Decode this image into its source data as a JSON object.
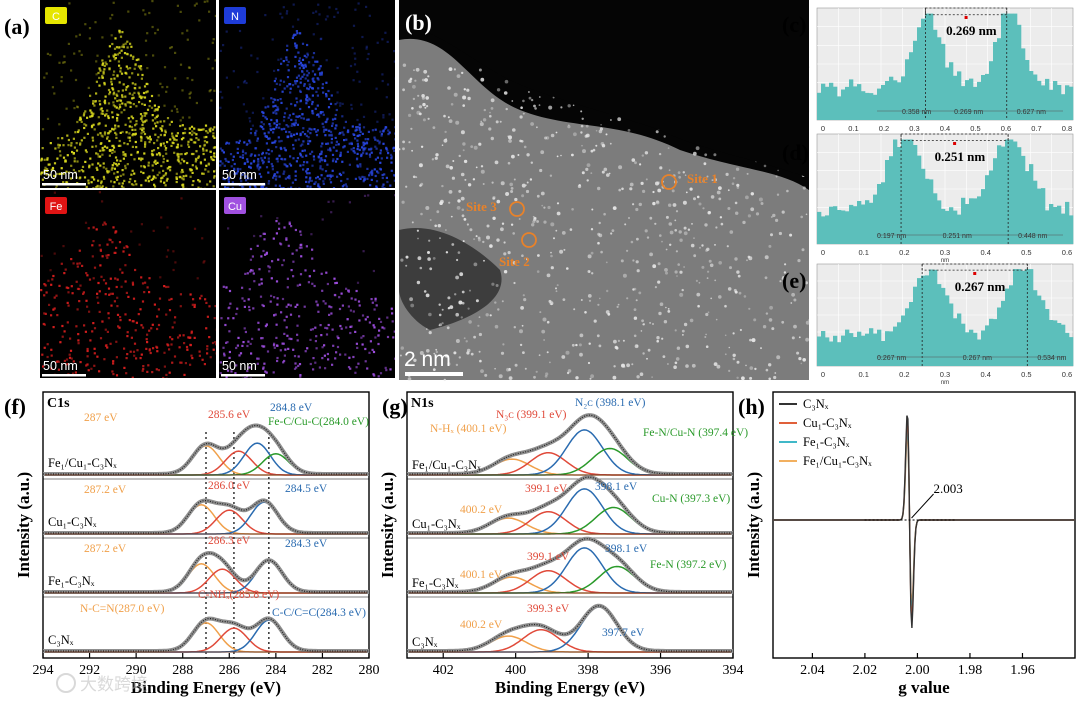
{
  "panels": {
    "a": {
      "label": "(a)",
      "tiles": [
        {
          "element": "C",
          "color": "#d8d81e",
          "badge": "#e6e600",
          "scale": "50 nm"
        },
        {
          "element": "N",
          "color": "#2846e0",
          "badge": "#1e3cd8",
          "scale": "50 nm"
        },
        {
          "element": "Fe",
          "color": "#d81e1e",
          "badge": "#e01414",
          "scale": "50 nm"
        },
        {
          "element": "Cu",
          "color": "#9e4ee0",
          "badge": "#a050e0",
          "scale": "50 nm"
        }
      ]
    },
    "b": {
      "label": "(b)",
      "sites": [
        "Site 1",
        "Site 2",
        "Site 3"
      ],
      "scale": "2 nm",
      "site_color": "#e8822a"
    },
    "c": {
      "label": "(c)",
      "distance": "0.269 nm",
      "marks": [
        "0.358 nm",
        "0.269 nm",
        "0.627 nm"
      ],
      "xticks": [
        "0",
        "0.1",
        "0.2",
        "0.3",
        "0.4",
        "0.5",
        "0.6",
        "0.7",
        "0.8"
      ],
      "unit": "nm"
    },
    "d": {
      "label": "(d)",
      "distance": "0.251 nm",
      "marks": [
        "0.197 nm",
        "0.251 nm",
        "0.448 nm"
      ],
      "xticks": [
        "0",
        "0.1",
        "0.2",
        "0.3",
        "0.4",
        "0.5",
        "0.6"
      ],
      "unit": "nm"
    },
    "e": {
      "label": "(e)",
      "distance": "0.267 nm",
      "marks": [
        "0.267 nm",
        "0.267 nm",
        "0.534 nm"
      ],
      "xticks": [
        "0",
        "0.1",
        "0.2",
        "0.3",
        "0.4",
        "0.5",
        "0.6"
      ],
      "unit": "nm"
    },
    "f": {
      "label": "(f)",
      "spectrum": "C1s"
    },
    "g": {
      "label": "(g)",
      "spectrum": "N1s"
    },
    "h": {
      "label": "(h)"
    }
  },
  "watermark": "大数跨境",
  "chart_data": [
    {
      "id": "f",
      "type": "line",
      "title": "C1s",
      "xlabel": "Binding Energy (eV)",
      "ylabel": "Intensity (a.u.)",
      "xlim": [
        294,
        280
      ],
      "xticks": [
        294,
        292,
        290,
        288,
        286,
        284,
        282,
        280
      ],
      "reference_lines": [
        287.0,
        285.8,
        284.3
      ],
      "series": [
        {
          "name": "Fe1/Cu1-C3Nx",
          "label": "Fe₁/Cu₁-C₃Nₓ",
          "peaks": [
            {
              "eV": 287.0,
              "label": "287 eV",
              "color": "#f0a04a"
            },
            {
              "eV": 285.6,
              "label": "285.6 eV",
              "color": "#e04a3a"
            },
            {
              "eV": 284.8,
              "label": "284.8 eV",
              "color": "#2a6bb0"
            },
            {
              "eV": 284.0,
              "label": "Fe-C/Cu-C(284.0 eV)",
              "color": "#2a9a2a"
            }
          ]
        },
        {
          "name": "Cu1-C3Nx",
          "label": "Cu₁-C₃Nₓ",
          "peaks": [
            {
              "eV": 287.2,
              "label": "287.2 eV",
              "color": "#f0a04a"
            },
            {
              "eV": 286.0,
              "label": "286.0 eV",
              "color": "#e04a3a"
            },
            {
              "eV": 284.5,
              "label": "284.5 eV",
              "color": "#2a6bb0"
            }
          ]
        },
        {
          "name": "Fe1-C3Nx",
          "label": "Fe₁-C₃Nₓ",
          "peaks": [
            {
              "eV": 287.2,
              "label": "287.2 eV",
              "color": "#f0a04a"
            },
            {
              "eV": 286.3,
              "label": "286.3 eV",
              "color": "#e04a3a"
            },
            {
              "eV": 284.3,
              "label": "284.3 eV",
              "color": "#2a6bb0"
            }
          ]
        },
        {
          "name": "C3Nx",
          "label": "C₃Nₓ",
          "peaks": [
            {
              "eV": 287.0,
              "label": "N-C=N(287.0 eV)",
              "color": "#f0a04a"
            },
            {
              "eV": 285.8,
              "label": "C-NHₓ(285.8 eV)",
              "color": "#e04a3a"
            },
            {
              "eV": 284.3,
              "label": "C-C/C=C(284.3 eV)",
              "color": "#2a6bb0"
            }
          ]
        }
      ]
    },
    {
      "id": "g",
      "type": "line",
      "title": "N1s",
      "xlabel": "Binding Energy (eV)",
      "ylabel": "Intensity (a.u.)",
      "xlim": [
        403,
        394
      ],
      "xticks": [
        402,
        400,
        398,
        396,
        394
      ],
      "series": [
        {
          "name": "Fe1/Cu1-C3Nx",
          "label": "Fe₁/Cu₁-C₃Nₓ",
          "peaks": [
            {
              "eV": 400.1,
              "label": "N-Hₓ (400.1 eV)",
              "color": "#f0a04a"
            },
            {
              "eV": 399.1,
              "label": "N₃ᴄ (399.1 eV)",
              "color": "#e04a3a"
            },
            {
              "eV": 398.1,
              "label": "N₂ᴄ (398.1 eV)",
              "color": "#2a6bb0"
            },
            {
              "eV": 397.4,
              "label": "Fe-N/Cu-N (397.4 eV)",
              "color": "#2a9a2a"
            }
          ]
        },
        {
          "name": "Cu1-C3Nx",
          "label": "Cu₁-C₃Nₓ",
          "peaks": [
            {
              "eV": 400.2,
              "label": "400.2 eV",
              "color": "#f0a04a"
            },
            {
              "eV": 399.1,
              "label": "399.1 eV",
              "color": "#e04a3a"
            },
            {
              "eV": 398.1,
              "label": "398.1 eV",
              "color": "#2a6bb0"
            },
            {
              "eV": 397.3,
              "label": "Cu-N (397.3 eV)",
              "color": "#2a9a2a"
            }
          ]
        },
        {
          "name": "Fe1-C3Nx",
          "label": "Fe₁-C₃Nₓ",
          "peaks": [
            {
              "eV": 400.1,
              "label": "400.1 eV",
              "color": "#f0a04a"
            },
            {
              "eV": 399.1,
              "label": "399.1 eV",
              "color": "#e04a3a"
            },
            {
              "eV": 398.1,
              "label": "398.1 eV",
              "color": "#2a6bb0"
            },
            {
              "eV": 397.2,
              "label": "Fe-N (397.2 eV)",
              "color": "#2a9a2a"
            }
          ]
        },
        {
          "name": "C3Nx",
          "label": "C₃Nₓ",
          "peaks": [
            {
              "eV": 400.2,
              "label": "400.2 eV",
              "color": "#f0a04a"
            },
            {
              "eV": 399.3,
              "label": "399.3 eV",
              "color": "#e04a3a"
            },
            {
              "eV": 397.7,
              "label": "397.7 eV",
              "color": "#2a6bb0"
            }
          ]
        }
      ]
    },
    {
      "id": "h",
      "type": "line",
      "title": "",
      "xlabel": "g value",
      "ylabel": "Intensity (a.u.)",
      "xlim": [
        2.055,
        1.94
      ],
      "xticks": [
        2.04,
        2.02,
        2.0,
        1.98,
        1.96
      ],
      "annotation": "2.003",
      "g_center": 2.003,
      "series": [
        {
          "name": "C3Nx",
          "label": "C₃Nₓ",
          "color": "#333333",
          "amplitude": 1.0
        },
        {
          "name": "Cu1-C3Nx",
          "label": "Cu₁-C₃Nₓ",
          "color": "#e0603a",
          "amplitude": 0.93
        },
        {
          "name": "Fe1-C3Nx",
          "label": "Fe₁-C₃Nₓ",
          "color": "#40b8c8",
          "amplitude": 0.86
        },
        {
          "name": "Fe1/Cu1-C3Nx",
          "label": "Fe₁/Cu₁-C₃Nₓ",
          "color": "#f2b060",
          "amplitude": 0.8
        }
      ]
    }
  ]
}
